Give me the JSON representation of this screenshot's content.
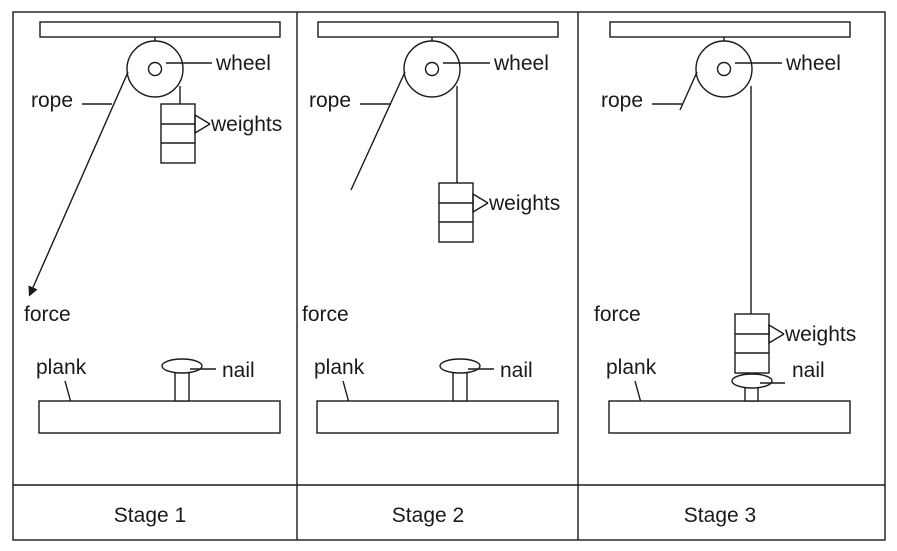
{
  "labels": {
    "wheel": "wheel",
    "rope": "rope",
    "weights": "weights",
    "force": "force",
    "plank": "plank",
    "nail": "nail"
  },
  "stages": [
    {
      "title": "Stage 1"
    },
    {
      "title": "Stage 2"
    },
    {
      "title": "Stage 3"
    }
  ]
}
